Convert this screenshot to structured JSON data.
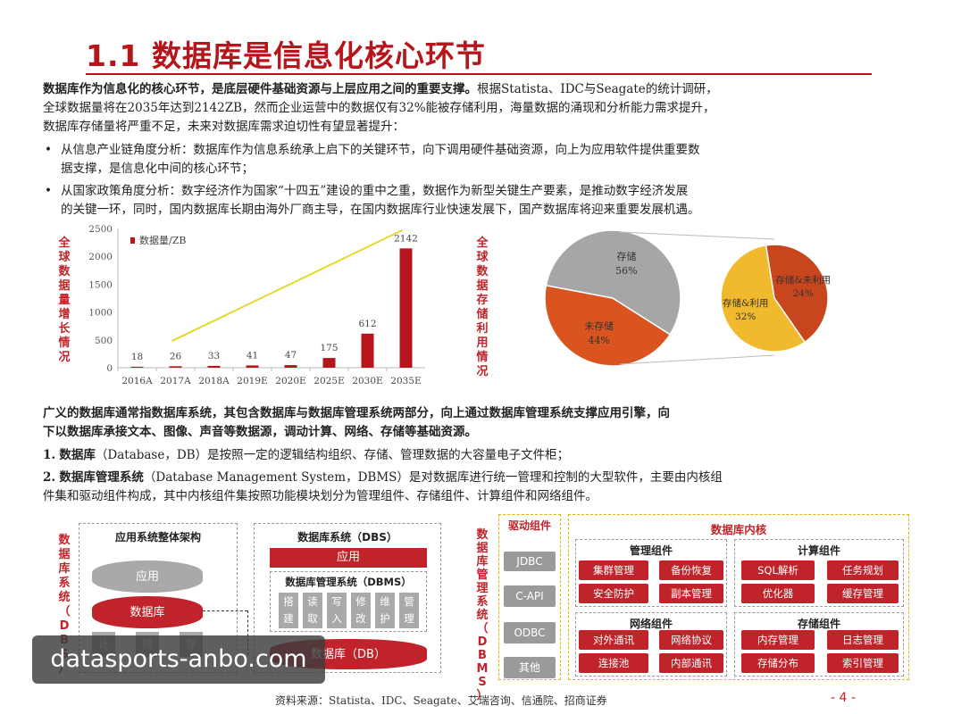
{
  "title": "1.1 数据库是信息化核心环节",
  "intro": {
    "bold": "数据库作为信息化的核心环节，是底层硬件基础资源与上层应用之间的重要支撑。",
    "line1_rest": "根据Statista、IDC与Seagate的统计调研，",
    "line2": "全球数据量将在2035年达到2142ZB，然而企业运营中的数据仅有32%能被存储利用，海量数据的涌现和分析能力需求提升，",
    "line3": "数据库存储量将严重不足，未来对数据库需求迫切性有望显著提升："
  },
  "bullets": [
    {
      "line1": "从信息产业链角度分析：数据库作为信息系统承上启下的关键环节，向下调用硬件基础资源，向上为应用软件提供重要数",
      "line2": "据支撑，是信息化中间的核心环节；"
    },
    {
      "line1": "从国家政策角度分析：数字经济作为国家“十四五”建设的重中之重，数据作为新型关键生产要素，是推动数字经济发展",
      "line2": "的关键一环，同时，国内数据库长期由海外厂商主导，在国内数据库行业快速发展下，国产数据库将迎来重要发展机遇。"
    }
  ],
  "bar_chart_label": "全球数据量增长情况",
  "pie_chart_label": "全球数据存储利用情况",
  "chart_data": [
    {
      "type": "bar",
      "categories": [
        "2016A",
        "2017A",
        "2018A",
        "2019E",
        "2020E",
        "2025E",
        "2030E",
        "2035E"
      ],
      "series": [
        {
          "name": "数据量/ZB",
          "values": [
            18,
            26,
            33,
            41,
            47,
            175,
            612,
            2142
          ]
        }
      ],
      "value_labels": [
        "18",
        "26",
        "33",
        "41",
        "47",
        "175",
        "612",
        "2142"
      ],
      "yticks": [
        "0",
        "500",
        "1000",
        "1500",
        "2000",
        "2500"
      ],
      "ylim": [
        0,
        2500
      ],
      "color": "#b5151b",
      "legend": "top-left"
    },
    {
      "type": "pie",
      "slices": [
        {
          "label": "未存储",
          "pct": "44%",
          "value": 44,
          "color": "#d9541f"
        },
        {
          "label": "存储",
          "pct": "56%",
          "value": 56,
          "color": "#a6a6a6"
        }
      ],
      "breakdown": [
        {
          "label": "存储&利用",
          "pct": "32%",
          "value": 32,
          "color": "#f0b92e"
        },
        {
          "label": "存储&未利用",
          "pct": "24%",
          "value": 24,
          "color": "#c8461e"
        }
      ]
    }
  ],
  "para2": {
    "line1": "广义的数据库通常指数据库系统，其包含数据库与数据库管理系统两部分，向上通过数据库管理系统支撑应用引擎，向",
    "line2": "下以数据库承接文本、图像、声音等数据源，调动计算、网络、存储等基础资源。"
  },
  "items": [
    {
      "num": "1.",
      "bold": "数据库",
      "rest": "（Database，DB）是按照一定的逻辑结构组织、存储、管理数据的大容量电子文件柜；"
    },
    {
      "num": "2.",
      "bold": "数据库管理系统",
      "rest": "（Database Management System，DBMS）是对数据库进行统一管理和控制的大型软件，主要由内核组",
      "line2": "件集和驱动组件构成，其中内核组件集按照功能模块划分为管理组件、存储组件、计算组件和网络组件。"
    }
  ],
  "diagram_left": {
    "side_label": "数据库系统（DBS）",
    "box1_title": "应用系统整体架构",
    "app": "应用",
    "db": "数据库",
    "bottom_cells": [
      "计",
      "网",
      "存"
    ],
    "box2_title": "数据库系统（DBS）",
    "app2": "应用",
    "dbms_title": "数据库管理系统（DBMS）",
    "dbms_cells": [
      "搭建",
      "读取",
      "写入",
      "修改",
      "维护",
      "管理"
    ],
    "db2": "数据库（DB）"
  },
  "diagram_right": {
    "side_label": "数据库管理系统（DBMS）",
    "driver_title": "驱动组件",
    "drivers": [
      "JDBC",
      "C-API",
      "ODBC",
      "其他"
    ],
    "kernel_title": "数据库内核",
    "groups": [
      {
        "title": "管理组件",
        "items": [
          "集群管理",
          "备份恢复",
          "安全防护",
          "副本管理"
        ]
      },
      {
        "title": "计算组件",
        "items": [
          "SQL解析",
          "任务规划",
          "优化器",
          "缓存管理"
        ]
      },
      {
        "title": "网络组件",
        "items": [
          "对外通讯",
          "网络协议",
          "连接池",
          "内部通讯"
        ]
      },
      {
        "title": "存储组件",
        "items": [
          "内存管理",
          "日志管理",
          "存储分布",
          "索引管理"
        ]
      }
    ]
  },
  "source": "资料来源：Statista、IDC、Seagate、艾瑞咨询、信通院、招商证券",
  "page_number": "- 4 -",
  "watermark": "datasports-anbo.com"
}
